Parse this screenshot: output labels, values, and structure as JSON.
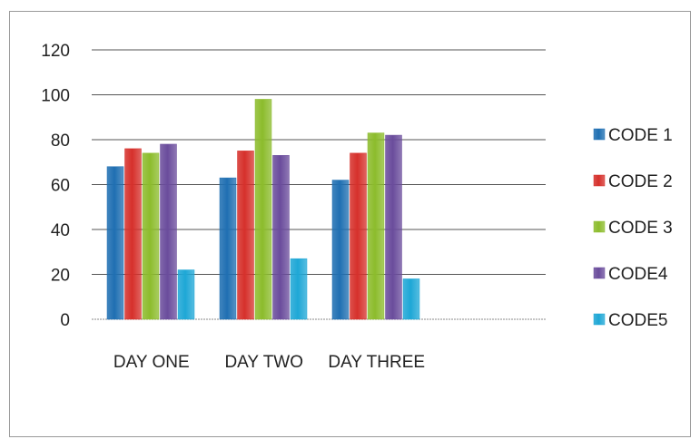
{
  "chart_data": {
    "type": "bar",
    "title": "",
    "xlabel": "",
    "ylabel": "",
    "categories": [
      "DAY ONE",
      "DAY TWO",
      "DAY THREE"
    ],
    "series": [
      {
        "name": "CODE 1",
        "values": [
          68,
          63,
          62
        ],
        "color": "#1f6fb2"
      },
      {
        "name": "CODE 2",
        "values": [
          76,
          75,
          74
        ],
        "color": "#d6302b"
      },
      {
        "name": "CODE 3",
        "values": [
          74,
          98,
          83
        ],
        "color": "#8cbc2c"
      },
      {
        "name": "CODE4",
        "values": [
          78,
          73,
          82
        ],
        "color": "#6a4c9c"
      },
      {
        "name": "CODE5",
        "values": [
          22,
          27,
          18
        ],
        "color": "#1ea7d6"
      }
    ],
    "ylim": [
      0,
      120
    ],
    "yticks": [
      0,
      20,
      40,
      60,
      80,
      100,
      120
    ],
    "grid": true,
    "legend": "right"
  }
}
